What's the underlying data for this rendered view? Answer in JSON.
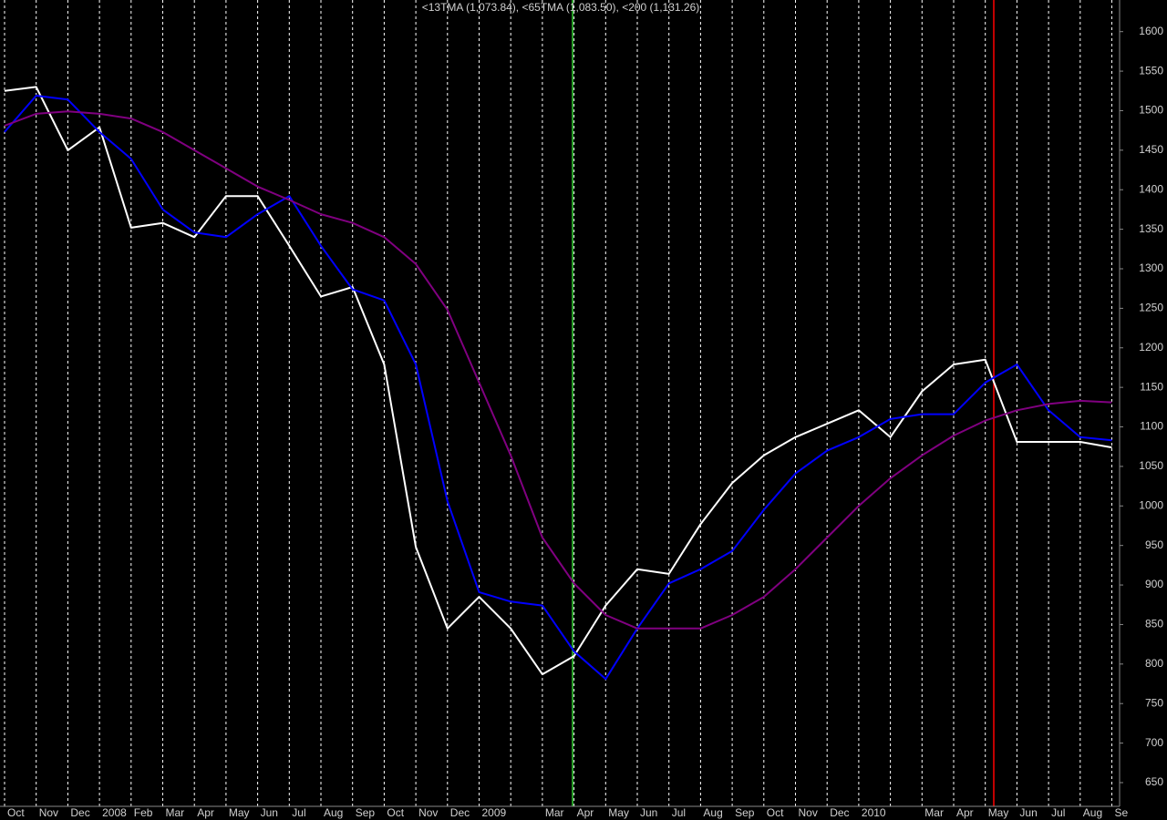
{
  "chart_data": {
    "type": "line",
    "title": "<13TMA (1,073.84), <65TMA (1,083.50), <200 (1,131.26)",
    "categories": [
      "Oct",
      "Nov",
      "Dec",
      "2008",
      "Feb",
      "Mar",
      "Apr",
      "May",
      "Jun",
      "Jul",
      "Aug",
      "Sep",
      "Oct",
      "Nov",
      "Dec",
      "2009",
      null,
      "Mar",
      "Apr",
      "May",
      "Jun",
      "Jul",
      "Aug",
      "Sep",
      "Oct",
      "Nov",
      "Dec",
      "2010",
      null,
      "Mar",
      "Apr",
      "May",
      "Jun",
      "Jul",
      "Aug",
      "Se"
    ],
    "series": [
      {
        "color": "#ffffff",
        "values": [
          1525,
          1530,
          1450,
          1479,
          1352,
          1358,
          1340,
          1392,
          1392,
          1329,
          1265,
          1277,
          1179,
          948,
          845,
          885,
          845,
          787,
          810,
          874,
          920,
          914,
          977,
          1029,
          1064,
          1087,
          1104,
          1121,
          1087,
          1145,
          1179,
          1185,
          1081,
          1081,
          1081,
          1074
        ]
      },
      {
        "color": "#0000ff",
        "values": [
          1473,
          1519,
          1514,
          1473,
          1439,
          1375,
          1346,
          1340,
          1369,
          1392,
          1329,
          1274,
          1260,
          1179,
          1006,
          891,
          879,
          874,
          816,
          781,
          845,
          902,
          920,
          943,
          995,
          1041,
          1070,
          1087,
          1110,
          1116,
          1116,
          1156,
          1179,
          1121,
          1087,
          1083
        ]
      },
      {
        "color": "#800080",
        "values": [
          1481,
          1496,
          1499,
          1496,
          1490,
          1473,
          1450,
          1427,
          1404,
          1387,
          1369,
          1358,
          1340,
          1306,
          1248,
          1156,
          1064,
          960,
          902,
          862,
          845,
          845,
          845,
          862,
          885,
          920,
          960,
          1000,
          1035,
          1064,
          1089,
          1108,
          1121,
          1129,
          1133,
          1131
        ]
      }
    ],
    "ylim": [
      620,
      1640
    ],
    "yticks": [
      650,
      700,
      750,
      800,
      850,
      900,
      950,
      1000,
      1050,
      1100,
      1150,
      1200,
      1250,
      1300,
      1350,
      1400,
      1450,
      1500,
      1550,
      1600
    ]
  }
}
